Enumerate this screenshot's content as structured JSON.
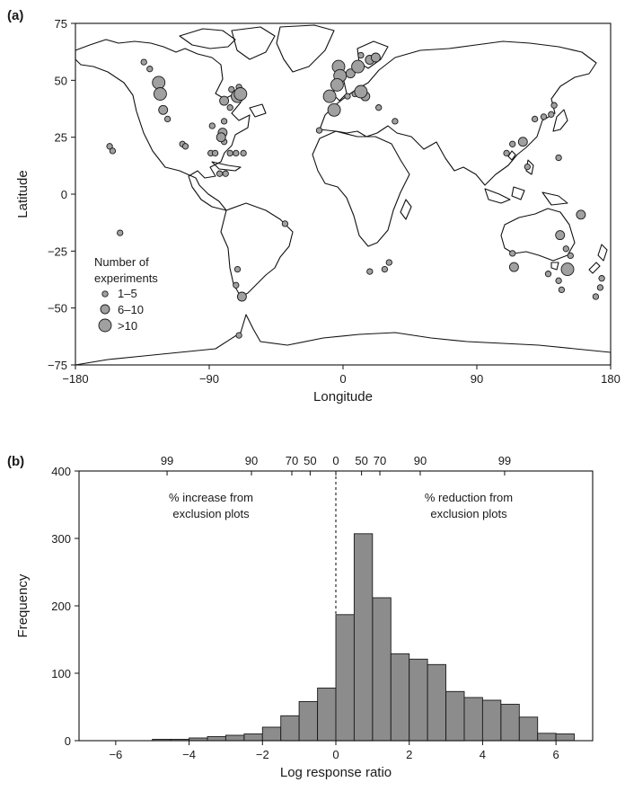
{
  "panel_a": {
    "letter": "(a)",
    "xlabel": "Longitude",
    "ylabel": "Latitude",
    "x_ticks": [
      "−180",
      "−90",
      "0",
      "90",
      "180"
    ],
    "y_ticks": [
      "75",
      "50",
      "25",
      "0",
      "−25",
      "−50",
      "−75"
    ],
    "legend": {
      "title_line1": "Number of",
      "title_line2": "experiments",
      "items": [
        "1–5",
        "6–10",
        ">10"
      ]
    }
  },
  "panel_b": {
    "letter": "(b)",
    "xlabel": "Log response ratio",
    "ylabel": "Frequency",
    "x_ticks": [
      "−6",
      "−4",
      "−2",
      "0",
      "2",
      "4",
      "6"
    ],
    "y_ticks": [
      "0",
      "100",
      "200",
      "300",
      "400"
    ],
    "top_ticks": [
      "99",
      "90",
      "70",
      "50",
      "0",
      "50",
      "70",
      "90",
      "99"
    ],
    "left_annotation_line1": "% increase from",
    "left_annotation_line2": "exclusion plots",
    "right_annotation_line1": "% reduction from",
    "right_annotation_line2": "exclusion plots"
  },
  "colors": {
    "bar_fill": "#8c8c8c",
    "marker_fill": "#a0a0a0",
    "outline": "#1a1a1a"
  },
  "chart_data": [
    {
      "type": "scatter",
      "xlim": [
        -180,
        180
      ],
      "ylim": [
        -75,
        75
      ],
      "size_classes": [
        "1–5",
        "6–10",
        ">10"
      ],
      "points": [
        {
          "lon": -124,
          "lat": 49,
          "size": 3
        },
        {
          "lon": -123,
          "lat": 44,
          "size": 3
        },
        {
          "lon": -121,
          "lat": 37,
          "size": 2
        },
        {
          "lon": -118,
          "lat": 33,
          "size": 1
        },
        {
          "lon": -134,
          "lat": 58,
          "size": 1
        },
        {
          "lon": -130,
          "lat": 55,
          "size": 1
        },
        {
          "lon": -108,
          "lat": 22,
          "size": 1
        },
        {
          "lon": -106,
          "lat": 21,
          "size": 1
        },
        {
          "lon": -157,
          "lat": 21,
          "size": 1
        },
        {
          "lon": -155,
          "lat": 19,
          "size": 1
        },
        {
          "lon": -150,
          "lat": -17,
          "size": 1
        },
        {
          "lon": -80,
          "lat": 41,
          "size": 2
        },
        {
          "lon": -76,
          "lat": 38,
          "size": 1
        },
        {
          "lon": -71,
          "lat": 43,
          "size": 3
        },
        {
          "lon": -69,
          "lat": 44,
          "size": 3
        },
        {
          "lon": -75,
          "lat": 46,
          "size": 1
        },
        {
          "lon": -70,
          "lat": 47,
          "size": 1
        },
        {
          "lon": -80,
          "lat": 32,
          "size": 1
        },
        {
          "lon": -81,
          "lat": 27,
          "size": 2
        },
        {
          "lon": -82,
          "lat": 25,
          "size": 2
        },
        {
          "lon": -88,
          "lat": 30,
          "size": 1
        },
        {
          "lon": -80,
          "lat": 23,
          "size": 1
        },
        {
          "lon": -76,
          "lat": 18,
          "size": 1
        },
        {
          "lon": -67,
          "lat": 18,
          "size": 1
        },
        {
          "lon": -83,
          "lat": 9,
          "size": 1
        },
        {
          "lon": -79,
          "lat": 9,
          "size": 1
        },
        {
          "lon": -72,
          "lat": 18,
          "size": 1
        },
        {
          "lon": -89,
          "lat": 18,
          "size": 1
        },
        {
          "lon": -86,
          "lat": 18,
          "size": 1
        },
        {
          "lon": -71,
          "lat": -33,
          "size": 1
        },
        {
          "lon": -72,
          "lat": -40,
          "size": 1
        },
        {
          "lon": -68,
          "lat": -45,
          "size": 2
        },
        {
          "lon": -70,
          "lat": -62,
          "size": 1
        },
        {
          "lon": -39,
          "lat": -13,
          "size": 1
        },
        {
          "lon": -3,
          "lat": 56,
          "size": 3
        },
        {
          "lon": -2,
          "lat": 52,
          "size": 3
        },
        {
          "lon": -4,
          "lat": 48,
          "size": 3
        },
        {
          "lon": -9,
          "lat": 43,
          "size": 3
        },
        {
          "lon": -6,
          "lat": 37,
          "size": 3
        },
        {
          "lon": -16,
          "lat": 28,
          "size": 1
        },
        {
          "lon": 5,
          "lat": 53,
          "size": 2
        },
        {
          "lon": 10,
          "lat": 56,
          "size": 3
        },
        {
          "lon": 12,
          "lat": 61,
          "size": 1
        },
        {
          "lon": 18,
          "lat": 59,
          "size": 2
        },
        {
          "lon": 22,
          "lat": 60,
          "size": 2
        },
        {
          "lon": 12,
          "lat": 45,
          "size": 3
        },
        {
          "lon": 15,
          "lat": 43,
          "size": 2
        },
        {
          "lon": 8,
          "lat": 44,
          "size": 1
        },
        {
          "lon": 3,
          "lat": 43,
          "size": 1
        },
        {
          "lon": 24,
          "lat": 38,
          "size": 1
        },
        {
          "lon": 35,
          "lat": 32,
          "size": 1
        },
        {
          "lon": 28,
          "lat": -33,
          "size": 1
        },
        {
          "lon": 31,
          "lat": -30,
          "size": 1
        },
        {
          "lon": 18,
          "lat": -34,
          "size": 1
        },
        {
          "lon": 140,
          "lat": 35,
          "size": 1
        },
        {
          "lon": 142,
          "lat": 39,
          "size": 1
        },
        {
          "lon": 129,
          "lat": 33,
          "size": 1
        },
        {
          "lon": 135,
          "lat": 34,
          "size": 1
        },
        {
          "lon": 121,
          "lat": 23,
          "size": 2
        },
        {
          "lon": 114,
          "lat": 22,
          "size": 1
        },
        {
          "lon": 110,
          "lat": 18,
          "size": 1
        },
        {
          "lon": 124,
          "lat": 12,
          "size": 1
        },
        {
          "lon": 145,
          "lat": 16,
          "size": 1
        },
        {
          "lon": 146,
          "lat": -18,
          "size": 2
        },
        {
          "lon": 150,
          "lat": -24,
          "size": 1
        },
        {
          "lon": 153,
          "lat": -27,
          "size": 1
        },
        {
          "lon": 151,
          "lat": -33,
          "size": 3
        },
        {
          "lon": 145,
          "lat": -38,
          "size": 1
        },
        {
          "lon": 147,
          "lat": -42,
          "size": 1
        },
        {
          "lon": 138,
          "lat": -35,
          "size": 1
        },
        {
          "lon": 115,
          "lat": -32,
          "size": 2
        },
        {
          "lon": 114,
          "lat": -26,
          "size": 1
        },
        {
          "lon": 160,
          "lat": -9,
          "size": 2
        },
        {
          "lon": 174,
          "lat": -37,
          "size": 1
        },
        {
          "lon": 173,
          "lat": -41,
          "size": 1
        },
        {
          "lon": 170,
          "lat": -45,
          "size": 1
        }
      ]
    },
    {
      "type": "bar",
      "xlabel": "Log response ratio",
      "ylabel": "Frequency",
      "xlim": [
        -7,
        7
      ],
      "ylim": [
        0,
        400
      ],
      "bin_width": 0.5,
      "bins": [
        {
          "x0": -5.0,
          "x1": -4.5,
          "count": 2
        },
        {
          "x0": -4.5,
          "x1": -4.0,
          "count": 2
        },
        {
          "x0": -4.0,
          "x1": -3.5,
          "count": 4
        },
        {
          "x0": -3.5,
          "x1": -3.0,
          "count": 6
        },
        {
          "x0": -3.0,
          "x1": -2.5,
          "count": 8
        },
        {
          "x0": -2.5,
          "x1": -2.0,
          "count": 10
        },
        {
          "x0": -2.0,
          "x1": -1.5,
          "count": 20
        },
        {
          "x0": -1.5,
          "x1": -1.0,
          "count": 37
        },
        {
          "x0": -1.0,
          "x1": -0.5,
          "count": 58
        },
        {
          "x0": -0.5,
          "x1": 0.0,
          "count": 78
        },
        {
          "x0": 0.0,
          "x1": 0.5,
          "count": 187
        },
        {
          "x0": 0.5,
          "x1": 1.0,
          "count": 307
        },
        {
          "x0": 1.0,
          "x1": 1.5,
          "count": 212
        },
        {
          "x0": 1.5,
          "x1": 2.0,
          "count": 129
        },
        {
          "x0": 2.0,
          "x1": 2.5,
          "count": 121
        },
        {
          "x0": 2.5,
          "x1": 3.0,
          "count": 113
        },
        {
          "x0": 3.0,
          "x1": 3.5,
          "count": 73
        },
        {
          "x0": 3.5,
          "x1": 4.0,
          "count": 64
        },
        {
          "x0": 4.0,
          "x1": 4.5,
          "count": 60
        },
        {
          "x0": 4.5,
          "x1": 5.0,
          "count": 54
        },
        {
          "x0": 5.0,
          "x1": 5.5,
          "count": 35
        },
        {
          "x0": 5.5,
          "x1": 6.0,
          "count": 11
        },
        {
          "x0": 6.0,
          "x1": 6.5,
          "count": 10
        }
      ],
      "top_axis": {
        "label_positions": [
          -4.6,
          -2.3,
          -1.2,
          -0.7,
          0,
          0.7,
          1.2,
          2.3,
          4.6
        ],
        "labels": [
          "99",
          "90",
          "70",
          "50",
          "0",
          "50",
          "70",
          "90",
          "99"
        ]
      },
      "reference_line_x": 0
    }
  ]
}
